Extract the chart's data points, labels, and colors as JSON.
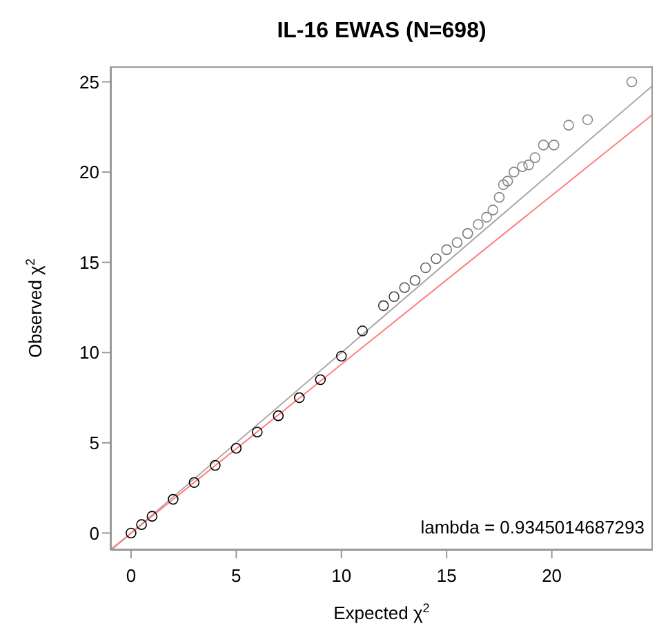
{
  "chart_data": {
    "type": "scatter",
    "title": "IL-16 EWAS (N=698)",
    "xlabel": "Expected  χ$^{2}$",
    "ylabel": "Observed  χ$^{2}$",
    "xlim": [
      -0.98,
      24.8
    ],
    "ylim": [
      -0.94,
      25.86
    ],
    "xticks": [
      0,
      5,
      10,
      15,
      20
    ],
    "yticks": [
      0,
      5,
      10,
      15,
      20,
      25
    ],
    "marker": "circle",
    "annotations": [
      "lambda =  0.9345014687293"
    ],
    "series": [
      {
        "type": "line",
        "marker": "none",
        "color": "#aaaaaa",
        "x": [
          -0.94,
          24.8
        ],
        "values": [
          -0.94,
          24.8
        ]
      },
      {
        "type": "line",
        "marker": "none",
        "color": "#ff8080",
        "x": [
          -0.98,
          24.8
        ],
        "values": [
          -0.92,
          23.2
        ]
      },
      {
        "x": [
          0,
          0.5,
          1,
          2,
          3,
          4,
          5,
          6,
          7,
          8,
          9,
          10,
          11,
          12,
          12.5,
          13,
          13.5,
          14,
          14.5,
          15,
          15.5,
          16,
          16.5,
          16.9,
          17.2,
          17.5,
          17.7,
          17.9,
          18.2,
          18.6,
          18.9,
          19.2,
          19.6,
          20.1,
          20.8,
          21.7,
          23.8
        ],
        "values": [
          0,
          0.47,
          0.93,
          1.87,
          2.8,
          3.75,
          4.7,
          5.6,
          6.5,
          7.5,
          8.5,
          9.8,
          11.2,
          12.6,
          13.1,
          13.6,
          14,
          14.7,
          15.2,
          15.7,
          16.1,
          16.6,
          17.1,
          17.5,
          17.9,
          18.6,
          19.3,
          19.5,
          20,
          20.3,
          20.4,
          20.8,
          21.5,
          21.5,
          22.6,
          22.9,
          25
        ],
        "colors": [
          "#000000",
          "#000000",
          "#000000",
          "#000000",
          "#000000",
          "#000000",
          "#000000",
          "#000000",
          "#000000",
          "#000000",
          "#000000",
          "#111111",
          "#222222",
          "#333333",
          "#444444",
          "#555555",
          "#555555",
          "#666666",
          "#666666",
          "#777777",
          "#777777",
          "#777777",
          "#888888",
          "#888888",
          "#888888",
          "#888888",
          "#888888",
          "#888888",
          "#888888",
          "#888888",
          "#888888",
          "#888888",
          "#888888",
          "#888888",
          "#888888",
          "#888888",
          "#888888"
        ]
      }
    ]
  }
}
